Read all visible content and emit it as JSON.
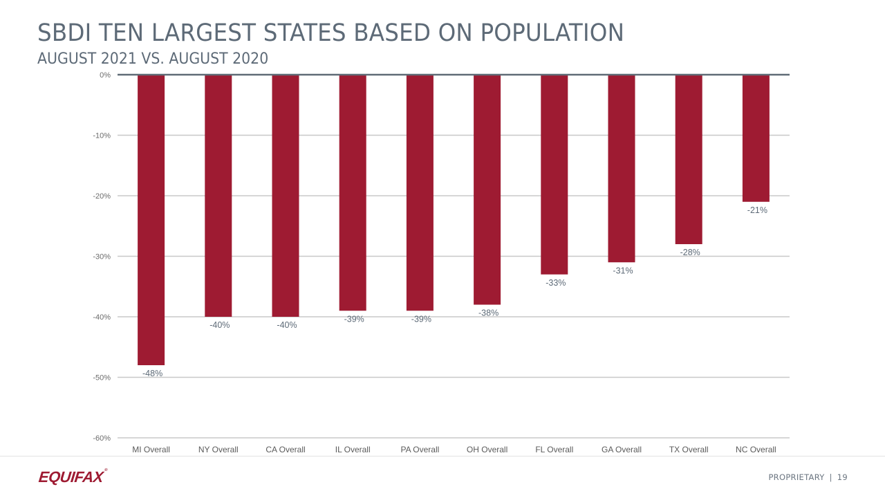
{
  "header": {
    "title": "SBDI TEN LARGEST STATES BASED ON POPULATION",
    "subtitle": "AUGUST 2021 VS. AUGUST 2020"
  },
  "footer": {
    "logo_text": "EQUIFAX",
    "logo_mark": "®",
    "label": "PROPRIETARY",
    "separator": "|",
    "page_number": "19"
  },
  "colors": {
    "bar": "#9e1b32",
    "title": "#5d6a77",
    "zero_line": "#5f6b76",
    "gridline": "#c8c8c8",
    "tick_label": "#6b6b6b",
    "data_label": "#5d6a77"
  },
  "chart_data": {
    "type": "bar",
    "title": "SBDI TEN LARGEST STATES BASED ON POPULATION",
    "subtitle": "AUGUST 2021 VS. AUGUST 2020",
    "xlabel": "",
    "ylabel": "",
    "categories": [
      "MI Overall",
      "NY Overall",
      "CA Overall",
      "IL Overall",
      "PA Overall",
      "OH Overall",
      "FL Overall",
      "GA Overall",
      "TX Overall",
      "NC Overall"
    ],
    "values": [
      -48,
      -40,
      -40,
      -39,
      -39,
      -38,
      -33,
      -31,
      -28,
      -21
    ],
    "data_labels": [
      "-48%",
      "-40%",
      "-40%",
      "-39%",
      "-39%",
      "-38%",
      "-33%",
      "-31%",
      "-28%",
      "-21%"
    ],
    "ylim": [
      -60,
      0
    ],
    "yticks": [
      0,
      -10,
      -20,
      -30,
      -40,
      -50,
      -60
    ],
    "ytick_labels": [
      "0%",
      "-10%",
      "-20%",
      "-30%",
      "-40%",
      "-50%",
      "-60%"
    ],
    "unit": "%",
    "grid": true,
    "legend": "none"
  }
}
